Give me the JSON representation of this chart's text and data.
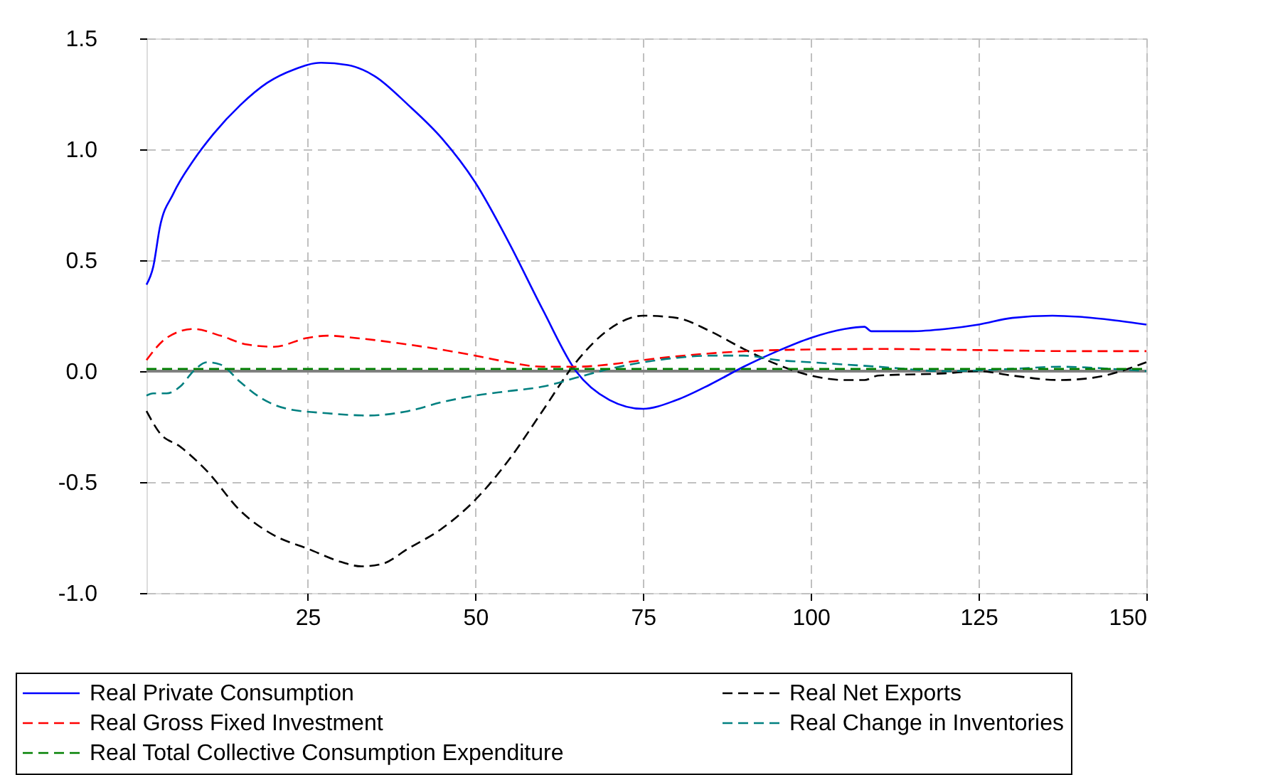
{
  "chart_data": {
    "type": "line",
    "xlim": [
      1,
      150
    ],
    "xticks": [
      25,
      50,
      75,
      100,
      125,
      150
    ],
    "ylim": [
      -1.0,
      1.5
    ],
    "yticks": [
      {
        "value": 1.5,
        "label": "1.5"
      },
      {
        "value": 1.0,
        "label": "1.0"
      },
      {
        "value": 0.5,
        "label": "0.5"
      },
      {
        "value": 0,
        "label": "0.0"
      },
      {
        "value": -0.5,
        "label": "-0.5"
      },
      {
        "value": -1.0,
        "label": "-1.0"
      }
    ],
    "grid": true,
    "legend": "bottom",
    "ref_lines": [
      {
        "axis": "y",
        "value": 0,
        "color": "#808080"
      }
    ],
    "series": [
      {
        "name": "Real Private Consumption",
        "color": "#0000ff",
        "line_style": "solid",
        "x": [
          1,
          2,
          3,
          5,
          8,
          11,
          15,
          19,
          23,
          27,
          31,
          35,
          40,
          45,
          50,
          55,
          60,
          65,
          70,
          75,
          80,
          85,
          90,
          95,
          100,
          105,
          108,
          109,
          115,
          120,
          125,
          130,
          136,
          140,
          145,
          150
        ],
        "values": [
          0.39,
          0.47,
          0.65,
          0.8,
          0.95,
          1.07,
          1.2,
          1.3,
          1.36,
          1.39,
          1.38,
          1.33,
          1.2,
          1.05,
          0.85,
          0.58,
          0.28,
          0.0,
          -0.13,
          -0.17,
          -0.13,
          -0.06,
          0.02,
          0.09,
          0.15,
          0.19,
          0.2,
          0.18,
          0.18,
          0.19,
          0.21,
          0.24,
          0.25,
          0.245,
          0.23,
          0.21
        ]
      },
      {
        "name": "Real Net Exports",
        "color": "#000000",
        "line_style": "dashed",
        "x": [
          1,
          3,
          6,
          10,
          15,
          20,
          25,
          30,
          33,
          36,
          40,
          45,
          50,
          55,
          60,
          65,
          70,
          75,
          80,
          85,
          90,
          95,
          100,
          105,
          108,
          110,
          120,
          125,
          130,
          137,
          142,
          150
        ],
        "values": [
          -0.18,
          -0.28,
          -0.34,
          -0.45,
          -0.63,
          -0.74,
          -0.8,
          -0.86,
          -0.88,
          -0.87,
          -0.8,
          -0.71,
          -0.58,
          -0.4,
          -0.18,
          0.04,
          0.19,
          0.25,
          0.24,
          0.18,
          0.1,
          0.03,
          -0.02,
          -0.04,
          -0.04,
          -0.02,
          -0.01,
          0.0,
          -0.02,
          -0.04,
          -0.03,
          0.04
        ]
      },
      {
        "name": "Real Gross Fixed Investment",
        "color": "#ff0000",
        "line_style": "dashed",
        "x": [
          1,
          4,
          8,
          12,
          16,
          20,
          25,
          28,
          32,
          40,
          50,
          55,
          60,
          65,
          70,
          75,
          85,
          95,
          110,
          125,
          140,
          150
        ],
        "values": [
          0.05,
          0.15,
          0.19,
          0.16,
          0.12,
          0.11,
          0.15,
          0.16,
          0.15,
          0.12,
          0.07,
          0.04,
          0.02,
          0.02,
          0.03,
          0.05,
          0.08,
          0.095,
          0.1,
          0.095,
          0.09,
          0.09
        ]
      },
      {
        "name": "Real Change in Inventories",
        "color": "#008080",
        "line_style": "dashed",
        "x": [
          1,
          2,
          4,
          6,
          8,
          10,
          12,
          15,
          18,
          22,
          28,
          34,
          40,
          45,
          50,
          55,
          60,
          65,
          70,
          75,
          80,
          85,
          90,
          95,
          100,
          110,
          120,
          130,
          137,
          145,
          150
        ],
        "values": [
          -0.11,
          -0.1,
          -0.1,
          -0.07,
          0.0,
          0.04,
          0.03,
          -0.05,
          -0.12,
          -0.17,
          -0.19,
          -0.2,
          -0.18,
          -0.14,
          -0.11,
          -0.09,
          -0.07,
          -0.03,
          0.01,
          0.04,
          0.06,
          0.07,
          0.07,
          0.05,
          0.04,
          0.02,
          0.0,
          0.01,
          0.02,
          0.01,
          0.0
        ]
      },
      {
        "name": "Real Total Collective Consumption Expenditure",
        "color": "#008000",
        "line_style": "dashed",
        "x": [
          1,
          150
        ],
        "values": [
          0.01,
          0.01
        ]
      }
    ]
  }
}
